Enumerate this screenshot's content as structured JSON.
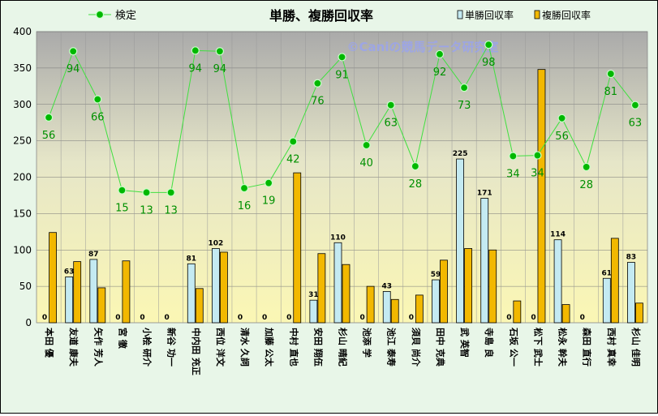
{
  "chart_data": {
    "type": "bar",
    "title": "単勝、複勝回収率",
    "watermark": "©Caniの競馬データ研究室",
    "ylim": [
      0,
      400
    ],
    "yticks": [
      0,
      50,
      100,
      150,
      200,
      250,
      300,
      350,
      400
    ],
    "legend_position": "top",
    "categories": [
      "本田 優",
      "友道 康夫",
      "矢作 芳人",
      "宮 徹",
      "小桧 研介",
      "新谷 功一",
      "中内田 充正",
      "西位 洋文",
      "清水 久詞",
      "加藤 公太",
      "中村 直也",
      "安田 翔伍",
      "杉山 晴紀",
      "池添 学",
      "池江 泰寿",
      "須貝 尚介",
      "田中 克典",
      "武 英智",
      "寺島 良",
      "石坂 公一",
      "松下 武士",
      "松永 幹夫",
      "森田 直行",
      "西村 真幸",
      "杉山 佳明"
    ],
    "series": [
      {
        "name": "検定",
        "kind": "line",
        "color": "#00b000",
        "values": [
          282,
          373,
          307,
          182,
          179,
          179,
          374,
          373,
          185,
          192,
          249,
          329,
          365,
          244,
          299,
          215,
          369,
          323,
          382,
          229,
          230,
          281,
          214,
          342,
          299
        ],
        "labels": [
          "56",
          "94",
          "66",
          "15",
          "13",
          "13",
          "94",
          "94",
          "16",
          "19",
          "42",
          "76",
          "91",
          "40",
          "63",
          "28",
          "92",
          "73",
          "98",
          "34",
          "34",
          "56",
          "28",
          "81",
          "63"
        ]
      },
      {
        "name": "単勝回収率",
        "kind": "bar",
        "color": "#c4eaf2",
        "values": [
          0,
          63,
          87,
          0,
          0,
          0,
          81,
          102,
          0,
          0,
          0,
          31,
          110,
          0,
          43,
          0,
          59,
          225,
          171,
          0,
          0,
          114,
          0,
          61,
          83
        ]
      },
      {
        "name": "複勝回収率",
        "kind": "bar",
        "color": "#f2b800",
        "values": [
          124,
          84,
          48,
          85,
          0,
          0,
          47,
          97,
          0,
          0,
          206,
          95,
          80,
          50,
          32,
          38,
          86,
          102,
          100,
          30,
          348,
          25,
          0,
          116,
          27
        ]
      }
    ]
  }
}
